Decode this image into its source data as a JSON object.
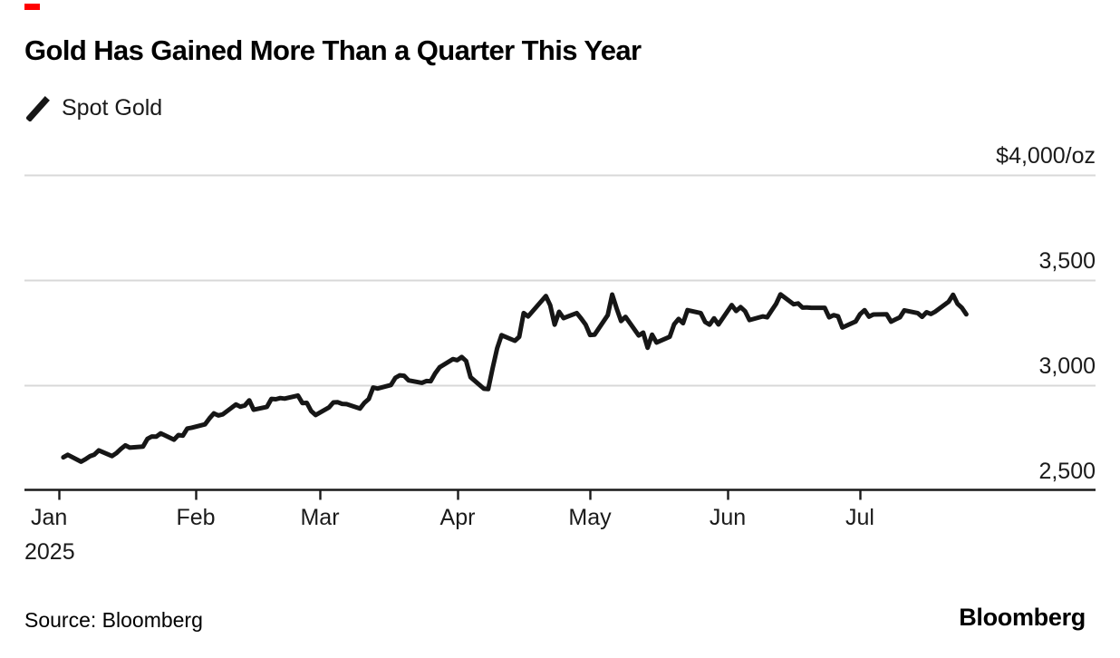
{
  "header": {
    "title": "Gold Has Gained More Than a Quarter This Year",
    "accent_color": "#ff0000"
  },
  "legend": {
    "series_label": "Spot Gold",
    "swatch": "diagonal-line-mark",
    "swatch_color": "#161616"
  },
  "footer": {
    "source": "Source: Bloomberg",
    "brand": "Bloomberg"
  },
  "chart_data": {
    "type": "line",
    "title": "Gold Has Gained More Than a Quarter This Year",
    "unit": "$/oz",
    "line_color": "#161616",
    "grid_color": "#d8d8d8",
    "axis_color": "#1a1a1a",
    "legend_position": "top-left",
    "y_axis": {
      "side": "right",
      "range": [
        2500,
        4000
      ],
      "ticks": [
        {
          "value": 2500,
          "label": "2,500"
        },
        {
          "value": 3000,
          "label": "3,000"
        },
        {
          "value": 3500,
          "label": "3,500"
        },
        {
          "value": 4000,
          "label": "$4,000/oz"
        }
      ]
    },
    "x_axis": {
      "range": [
        "2025-01-01",
        "2025-07-31"
      ],
      "ticks": [
        {
          "date": "2025-01-01",
          "label": "Jan",
          "sublabel": "2025"
        },
        {
          "date": "2025-02-01",
          "label": "Feb"
        },
        {
          "date": "2025-03-01",
          "label": "Mar"
        },
        {
          "date": "2025-04-01",
          "label": "Apr"
        },
        {
          "date": "2025-05-01",
          "label": "May"
        },
        {
          "date": "2025-06-01",
          "label": "Jun"
        },
        {
          "date": "2025-07-01",
          "label": "Jul"
        }
      ]
    },
    "series": [
      {
        "name": "Spot Gold",
        "points": [
          [
            "2025-01-02",
            2657
          ],
          [
            "2025-01-03",
            2669
          ],
          [
            "2025-01-06",
            2636
          ],
          [
            "2025-01-07",
            2648
          ],
          [
            "2025-01-08",
            2662
          ],
          [
            "2025-01-09",
            2670
          ],
          [
            "2025-01-10",
            2690
          ],
          [
            "2025-01-13",
            2663
          ],
          [
            "2025-01-14",
            2677
          ],
          [
            "2025-01-15",
            2697
          ],
          [
            "2025-01-16",
            2714
          ],
          [
            "2025-01-17",
            2703
          ],
          [
            "2025-01-20",
            2708
          ],
          [
            "2025-01-21",
            2745
          ],
          [
            "2025-01-22",
            2756
          ],
          [
            "2025-01-23",
            2755
          ],
          [
            "2025-01-24",
            2771
          ],
          [
            "2025-01-27",
            2741
          ],
          [
            "2025-01-28",
            2763
          ],
          [
            "2025-01-29",
            2760
          ],
          [
            "2025-01-30",
            2794
          ],
          [
            "2025-01-31",
            2798
          ],
          [
            "2025-02-03",
            2814
          ],
          [
            "2025-02-04",
            2842
          ],
          [
            "2025-02-05",
            2866
          ],
          [
            "2025-02-06",
            2856
          ],
          [
            "2025-02-07",
            2861
          ],
          [
            "2025-02-10",
            2908
          ],
          [
            "2025-02-11",
            2898
          ],
          [
            "2025-02-12",
            2904
          ],
          [
            "2025-02-13",
            2928
          ],
          [
            "2025-02-14",
            2883
          ],
          [
            "2025-02-17",
            2897
          ],
          [
            "2025-02-18",
            2935
          ],
          [
            "2025-02-19",
            2933
          ],
          [
            "2025-02-20",
            2939
          ],
          [
            "2025-02-21",
            2936
          ],
          [
            "2025-02-24",
            2951
          ],
          [
            "2025-02-25",
            2915
          ],
          [
            "2025-02-26",
            2916
          ],
          [
            "2025-02-27",
            2877
          ],
          [
            "2025-02-28",
            2858
          ],
          [
            "2025-03-03",
            2894
          ],
          [
            "2025-03-04",
            2918
          ],
          [
            "2025-03-05",
            2919
          ],
          [
            "2025-03-06",
            2911
          ],
          [
            "2025-03-07",
            2910
          ],
          [
            "2025-03-10",
            2889
          ],
          [
            "2025-03-11",
            2916
          ],
          [
            "2025-03-12",
            2934
          ],
          [
            "2025-03-13",
            2989
          ],
          [
            "2025-03-14",
            2984
          ],
          [
            "2025-03-17",
            3001
          ],
          [
            "2025-03-18",
            3035
          ],
          [
            "2025-03-19",
            3047
          ],
          [
            "2025-03-20",
            3045
          ],
          [
            "2025-03-21",
            3023
          ],
          [
            "2025-03-24",
            3011
          ],
          [
            "2025-03-25",
            3020
          ],
          [
            "2025-03-26",
            3019
          ],
          [
            "2025-03-27",
            3056
          ],
          [
            "2025-03-28",
            3085
          ],
          [
            "2025-03-31",
            3124
          ],
          [
            "2025-04-01",
            3119
          ],
          [
            "2025-04-02",
            3134
          ],
          [
            "2025-04-03",
            3115
          ],
          [
            "2025-04-04",
            3038
          ],
          [
            "2025-04-07",
            2983
          ],
          [
            "2025-04-08",
            2982
          ],
          [
            "2025-04-09",
            3082
          ],
          [
            "2025-04-10",
            3175
          ],
          [
            "2025-04-11",
            3238
          ],
          [
            "2025-04-14",
            3211
          ],
          [
            "2025-04-15",
            3230
          ],
          [
            "2025-04-16",
            3343
          ],
          [
            "2025-04-17",
            3327
          ],
          [
            "2025-04-21",
            3424
          ],
          [
            "2025-04-22",
            3380
          ],
          [
            "2025-04-23",
            3288
          ],
          [
            "2025-04-24",
            3349
          ],
          [
            "2025-04-25",
            3319
          ],
          [
            "2025-04-28",
            3343
          ],
          [
            "2025-04-29",
            3317
          ],
          [
            "2025-04-30",
            3288
          ],
          [
            "2025-05-01",
            3239
          ],
          [
            "2025-05-02",
            3240
          ],
          [
            "2025-05-05",
            3333
          ],
          [
            "2025-05-06",
            3431
          ],
          [
            "2025-05-07",
            3365
          ],
          [
            "2025-05-08",
            3305
          ],
          [
            "2025-05-09",
            3325
          ],
          [
            "2025-05-12",
            3236
          ],
          [
            "2025-05-13",
            3250
          ],
          [
            "2025-05-14",
            3178
          ],
          [
            "2025-05-15",
            3240
          ],
          [
            "2025-05-16",
            3203
          ],
          [
            "2025-05-19",
            3230
          ],
          [
            "2025-05-20",
            3290
          ],
          [
            "2025-05-21",
            3315
          ],
          [
            "2025-05-22",
            3295
          ],
          [
            "2025-05-23",
            3357
          ],
          [
            "2025-05-26",
            3343
          ],
          [
            "2025-05-27",
            3301
          ],
          [
            "2025-05-28",
            3288
          ],
          [
            "2025-05-29",
            3318
          ],
          [
            "2025-05-30",
            3289
          ],
          [
            "2025-06-02",
            3381
          ],
          [
            "2025-06-03",
            3353
          ],
          [
            "2025-06-04",
            3371
          ],
          [
            "2025-06-05",
            3352
          ],
          [
            "2025-06-06",
            3310
          ],
          [
            "2025-06-09",
            3327
          ],
          [
            "2025-06-10",
            3323
          ],
          [
            "2025-06-11",
            3355
          ],
          [
            "2025-06-12",
            3386
          ],
          [
            "2025-06-13",
            3432
          ],
          [
            "2025-06-16",
            3385
          ],
          [
            "2025-06-17",
            3389
          ],
          [
            "2025-06-18",
            3369
          ],
          [
            "2025-06-19",
            3370
          ],
          [
            "2025-06-20",
            3368
          ],
          [
            "2025-06-23",
            3368
          ],
          [
            "2025-06-24",
            3323
          ],
          [
            "2025-06-25",
            3333
          ],
          [
            "2025-06-26",
            3328
          ],
          [
            "2025-06-27",
            3274
          ],
          [
            "2025-06-30",
            3303
          ],
          [
            "2025-07-01",
            3338
          ],
          [
            "2025-07-02",
            3357
          ],
          [
            "2025-07-03",
            3326
          ],
          [
            "2025-07-04",
            3336
          ],
          [
            "2025-07-07",
            3337
          ],
          [
            "2025-07-08",
            3302
          ],
          [
            "2025-07-09",
            3313
          ],
          [
            "2025-07-10",
            3323
          ],
          [
            "2025-07-11",
            3356
          ],
          [
            "2025-07-14",
            3343
          ],
          [
            "2025-07-15",
            3325
          ],
          [
            "2025-07-16",
            3347
          ],
          [
            "2025-07-17",
            3339
          ],
          [
            "2025-07-18",
            3350
          ],
          [
            "2025-07-21",
            3397
          ],
          [
            "2025-07-22",
            3430
          ],
          [
            "2025-07-23",
            3387
          ],
          [
            "2025-07-24",
            3368
          ],
          [
            "2025-07-25",
            3337
          ]
        ]
      }
    ]
  }
}
